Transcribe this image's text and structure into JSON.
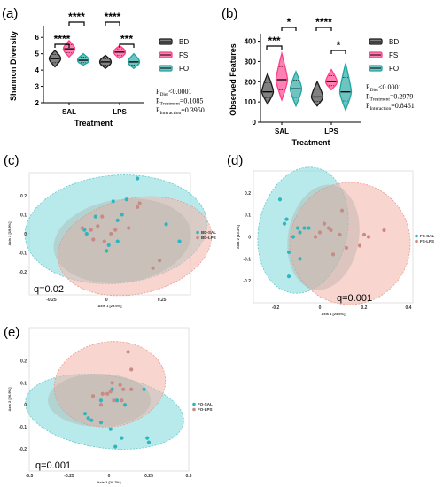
{
  "colors": {
    "bd": "#1a1a1a",
    "fs": "#ff3d8b",
    "fo": "#1fa5a0",
    "teal_pt": "#2cb7c0",
    "pink_pt": "#c98a86",
    "teal_ell": "#7fd9db",
    "pink_ell": "#f4b2a9"
  },
  "chart_data": [
    {
      "panel": "(a)",
      "type": "violin",
      "ylabel": "Shannon Diversity",
      "xlabel": "Treatment",
      "categories": [
        "SAL",
        "LPS"
      ],
      "yticks": [
        "2",
        "3",
        "4",
        "5",
        "6"
      ],
      "ylim": [
        2,
        6.5
      ],
      "series": [
        {
          "name": "BD",
          "medians": [
            4.7,
            4.5
          ],
          "ranges": [
            [
              4.2,
              5.2
            ],
            [
              4.1,
              4.9
            ]
          ]
        },
        {
          "name": "FS",
          "medians": [
            5.3,
            5.1
          ],
          "ranges": [
            [
              4.8,
              5.8
            ],
            [
              4.7,
              5.5
            ]
          ]
        },
        {
          "name": "FO",
          "medians": [
            4.6,
            4.5
          ],
          "ranges": [
            [
              4.3,
              5.0
            ],
            [
              4.1,
              5.0
            ]
          ]
        }
      ],
      "significance": [
        "****",
        "****",
        "****",
        "***"
      ],
      "stats": [
        {
          "pre": "P",
          "sub": "Diet",
          "val": "<0.0001"
        },
        {
          "pre": "P",
          "sub": "Treatment",
          "val": "=0.1085"
        },
        {
          "pre": "P",
          "sub": "Interaction",
          "val": "=0.3950"
        }
      ]
    },
    {
      "panel": "(b)",
      "type": "violin",
      "ylabel": "Observed Features",
      "xlabel": "Treatment",
      "categories": [
        "SAL",
        "LPS"
      ],
      "yticks": [
        "0",
        "100",
        "200",
        "300",
        "400"
      ],
      "ylim": [
        0,
        420
      ],
      "series": [
        {
          "name": "BD",
          "medians": [
            150,
            125
          ],
          "ranges": [
            [
              90,
              240
            ],
            [
              80,
              200
            ]
          ]
        },
        {
          "name": "FS",
          "medians": [
            210,
            200
          ],
          "ranges": [
            [
              110,
              340
            ],
            [
              160,
              260
            ]
          ]
        },
        {
          "name": "FO",
          "medians": [
            165,
            150
          ],
          "ranges": [
            [
              80,
              250
            ],
            [
              60,
              290
            ]
          ]
        }
      ],
      "significance": [
        "***",
        "*",
        "****",
        "*"
      ],
      "stats": [
        {
          "pre": "P",
          "sub": "Diet",
          "val": "<0.0001"
        },
        {
          "pre": "P",
          "sub": "Treatment",
          "val": "=0.2979"
        },
        {
          "pre": "P",
          "sub": "Interaction",
          "val": "=0.8461"
        }
      ]
    },
    {
      "panel": "(c)",
      "type": "scatter",
      "xlabel": "Axis 1 [25.6%]",
      "ylabel": "Axis 2 [19.9%]",
      "xlim": [
        -0.35,
        0.38
      ],
      "ylim": [
        -0.32,
        0.32
      ],
      "xticks": [
        "-0.25",
        "0",
        "0.25"
      ],
      "yticks": [
        "0.2",
        "0.1",
        "0",
        "-0.1",
        "-0.2"
      ],
      "q": "q=0.02",
      "series": [
        {
          "name": "BD-SAL",
          "points": [
            [
              0.14,
              0.29
            ],
            [
              0.09,
              0.18
            ],
            [
              0.03,
              0.17
            ],
            [
              0.27,
              0.05
            ],
            [
              0.07,
              0.1
            ],
            [
              0.05,
              0.07
            ],
            [
              -0.05,
              0.09
            ],
            [
              -0.1,
              0.02
            ],
            [
              -0.09,
              0.0
            ],
            [
              0.01,
              -0.06
            ],
            [
              0.05,
              -0.04
            ],
            [
              0.0,
              -0.09
            ],
            [
              0.33,
              -0.04
            ]
          ]
        },
        {
          "name": "BD-LPS",
          "points": [
            [
              0.15,
              0.16
            ],
            [
              0.14,
              0.14
            ],
            [
              -0.02,
              0.09
            ],
            [
              0.1,
              0.03
            ],
            [
              0.04,
              0.02
            ],
            [
              -0.07,
              0.02
            ],
            [
              -0.04,
              0.04
            ],
            [
              -0.11,
              0.03
            ],
            [
              0.02,
              0.0
            ],
            [
              -0.06,
              -0.03
            ],
            [
              -0.01,
              -0.04
            ],
            [
              0.24,
              -0.14
            ],
            [
              0.21,
              -0.18
            ]
          ]
        }
      ]
    },
    {
      "panel": "(d)",
      "type": "scatter",
      "xlabel": "Axis 1 [24.6%]",
      "ylabel": "Axis 2 [13.3%]",
      "xlim": [
        -0.3,
        0.42
      ],
      "ylim": [
        -0.3,
        0.3
      ],
      "xticks": [
        "-0.2",
        "0",
        "0.2",
        "0.4"
      ],
      "yticks": [
        "0.2",
        "0.1",
        "0",
        "-0.1",
        "-0.2"
      ],
      "q": "q=0.001",
      "series": [
        {
          "name": "FS-SAL",
          "points": [
            [
              -0.18,
              0.17
            ],
            [
              -0.15,
              0.08
            ],
            [
              -0.16,
              0.06
            ],
            [
              -0.1,
              0.04
            ],
            [
              -0.07,
              0.04
            ],
            [
              -0.05,
              0.04
            ],
            [
              -0.09,
              0.02
            ],
            [
              -0.12,
              0.0
            ],
            [
              -0.14,
              -0.07
            ],
            [
              -0.09,
              -0.1
            ],
            [
              -0.14,
              -0.18
            ]
          ]
        },
        {
          "name": "FS-LPS",
          "points": [
            [
              0.1,
              0.12
            ],
            [
              0.02,
              0.06
            ],
            [
              0.04,
              0.04
            ],
            [
              0.05,
              0.03
            ],
            [
              0.0,
              0.02
            ],
            [
              -0.02,
              0.0
            ],
            [
              0.09,
              0.01
            ],
            [
              0.18,
              -0.04
            ],
            [
              0.2,
              0.01
            ],
            [
              0.22,
              0.0
            ],
            [
              0.29,
              0.03
            ],
            [
              0.06,
              -0.08
            ],
            [
              0.12,
              -0.05
            ]
          ]
        }
      ]
    },
    {
      "panel": "(e)",
      "type": "scatter",
      "xlabel": "Axis 1 [28.7%]",
      "ylabel": "Axis 2 [20.9%]",
      "xlim": [
        -0.5,
        0.5
      ],
      "ylim": [
        -0.3,
        0.35
      ],
      "xticks": [
        "-0.5",
        "-0.25",
        "0",
        "0.25",
        "0.5"
      ],
      "yticks": [
        "0.2",
        "0.1",
        "0",
        "-0.1",
        "-0.2"
      ],
      "q": "q=0.001",
      "series": [
        {
          "name": "FO-SAL",
          "points": [
            [
              0.02,
              0.07
            ],
            [
              0.22,
              0.07
            ],
            [
              -0.05,
              0.02
            ],
            [
              0.05,
              0.02
            ],
            [
              0.1,
              0.0
            ],
            [
              -0.15,
              -0.04
            ],
            [
              -0.13,
              -0.06
            ],
            [
              -0.11,
              -0.07
            ],
            [
              -0.05,
              -0.08
            ],
            [
              0.01,
              -0.11
            ],
            [
              0.08,
              -0.15
            ],
            [
              0.24,
              -0.15
            ],
            [
              0.25,
              -0.17
            ],
            [
              0.04,
              -0.19
            ]
          ]
        },
        {
          "name": "FO-LPS",
          "points": [
            [
              0.12,
              0.24
            ],
            [
              0.14,
              0.16
            ],
            [
              0.02,
              0.1
            ],
            [
              0.07,
              0.09
            ],
            [
              0.09,
              0.07
            ],
            [
              0.01,
              0.06
            ],
            [
              -0.04,
              0.05
            ],
            [
              -0.01,
              0.05
            ],
            [
              -0.1,
              0.04
            ],
            [
              0.03,
              0.02
            ],
            [
              -0.05,
              0.0
            ],
            [
              0.14,
              0.07
            ],
            [
              0.08,
              0.02
            ]
          ]
        }
      ]
    }
  ]
}
